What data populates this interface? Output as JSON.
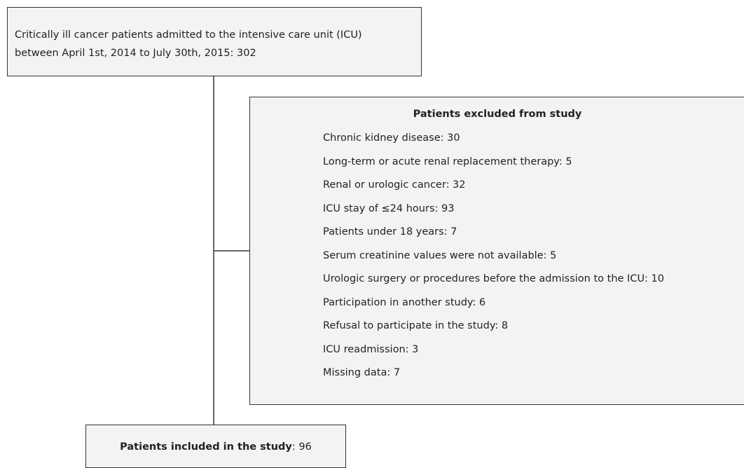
{
  "top_box": {
    "lines": [
      "Critically ill cancer patients admitted to the intensive care unit (ICU)",
      "between April 1st, 2014 to July 30th, 2015: 302"
    ]
  },
  "excluded_box": {
    "title": "Patients excluded from study",
    "items": [
      "Chronic kidney disease: 30",
      "Long-term or acute renal replacement therapy: 5",
      "Renal or urologic cancer: 32",
      "ICU stay of ≤24 hours: 93",
      "Patients under 18 years: 7",
      "Serum creatinine values were not available: 5",
      "Urologic surgery or procedures before the admission to the ICU: 10",
      "Participation in another study: 6",
      "Refusal to participate in the study: 8",
      "ICU readmission: 3",
      "Missing data: 7"
    ]
  },
  "included_box": {
    "label": "Patients included in the study",
    "count": ": 96"
  }
}
